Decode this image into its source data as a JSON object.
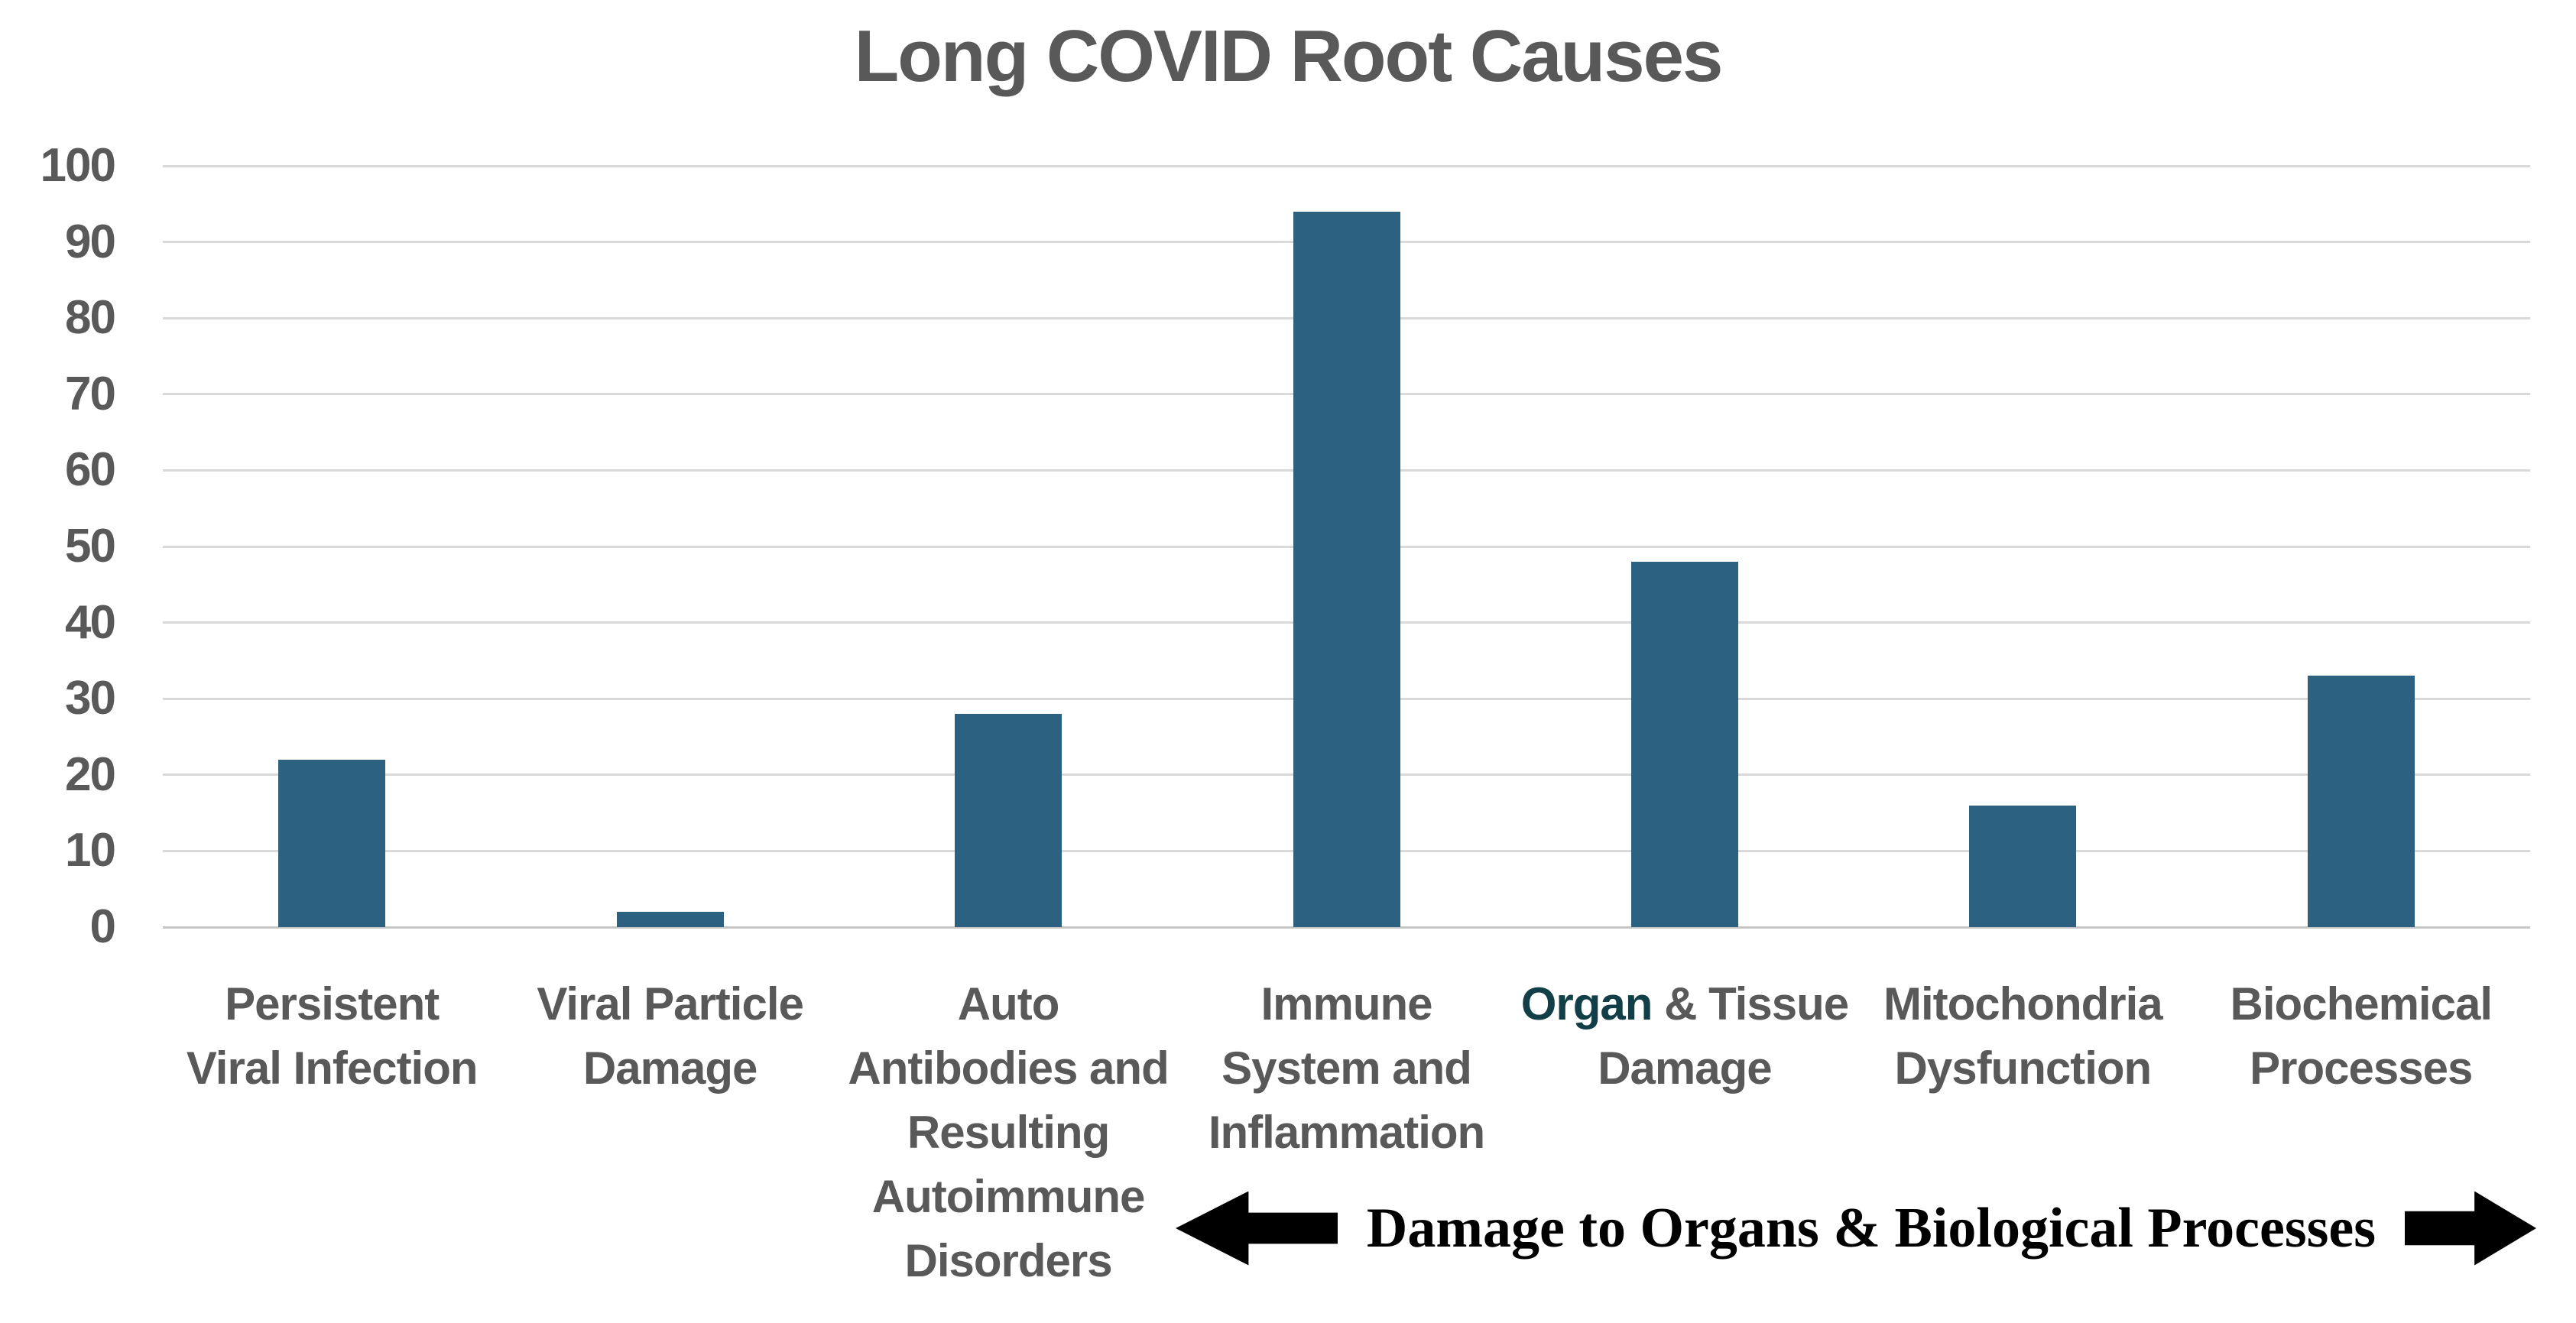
{
  "chart_data": {
    "type": "bar",
    "title": "Long COVID Root Causes",
    "categories": [
      {
        "label": "Persistent Viral Infection",
        "lines": [
          "Persistent",
          "Viral Infection"
        ]
      },
      {
        "label": "Viral Particle Damage",
        "lines": [
          "Viral Particle",
          "Damage"
        ]
      },
      {
        "label": "Auto Antibodies and Resulting Autoimmune Disorders",
        "lines": [
          "Auto",
          "Antibodies and",
          "Resulting",
          "Autoimmune",
          "Disorders"
        ]
      },
      {
        "label": "Immune System and Inflammation",
        "lines": [
          "Immune",
          "System and",
          "Inflammation"
        ]
      },
      {
        "label": "Organ & Tissue Damage",
        "lines": [
          "Organ & Tissue",
          "Damage"
        ],
        "highlight": {
          "word": "Organ",
          "color": "#113E47"
        }
      },
      {
        "label": "Mitochondria Dysfunction",
        "lines": [
          "Mitochondria",
          "Dysfunction"
        ]
      },
      {
        "label": "Biochemical Processes",
        "lines": [
          "Biochemical",
          "Processes"
        ]
      }
    ],
    "values": [
      22,
      2,
      28,
      94,
      48,
      16,
      33
    ],
    "ylim": [
      0,
      100
    ],
    "yticks": [
      0,
      10,
      20,
      30,
      40,
      50,
      60,
      70,
      80,
      90,
      100
    ],
    "grid": "horizontal",
    "legend": "none",
    "xlabel": "",
    "ylabel": "",
    "colors": {
      "bar": "#2D6182",
      "text": "#595959",
      "gridline": "#D9D9D9",
      "axis_line": "#C6C6C6",
      "annotation": "#000000"
    },
    "annotation": {
      "text": "Damage to Organs & Biological Processes",
      "arrows": "left-right"
    }
  }
}
